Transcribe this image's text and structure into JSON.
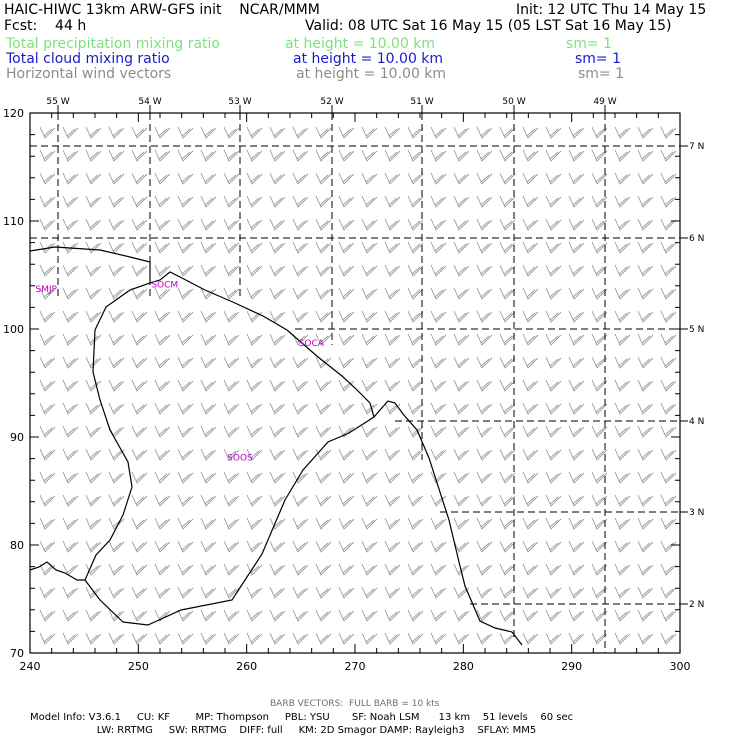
{
  "header": {
    "left_line1": "HAIC-HIWC 13km ARW-GFS init    NCAR/MMM",
    "right_line1": "Init: 12 UTC Thu 14 May 15",
    "left_line2": "Fcst:    44 h",
    "right_line2": "Valid: 08 UTC Sat 16 May 15 (05 LST Sat 16 May 15)",
    "fields": [
      {
        "name": "Total precipitation mixing ratio",
        "level": "at height = 10.00 km",
        "sm": "sm= 1",
        "color": "#7fe07f"
      },
      {
        "name": "Total cloud mixing ratio",
        "level": "at height = 10.00 km",
        "sm": "sm= 1",
        "color": "#1a1acd"
      },
      {
        "name": "Horizontal wind vectors",
        "level": "at height = 10.00 km",
        "sm": "sm= 1",
        "color": "#8c8c8c"
      }
    ]
  },
  "map": {
    "x_ticks": [
      "240",
      "250",
      "260",
      "270",
      "280",
      "290",
      "300"
    ],
    "y_ticks": [
      "70",
      "80",
      "90",
      "100",
      "110",
      "120"
    ],
    "lon_labels": [
      "55 W",
      "54 W",
      "53 W",
      "52 W",
      "51 W",
      "50 W",
      "49 W"
    ],
    "lat_labels": [
      "7 N",
      "6 N",
      "5 N",
      "4 N",
      "3 N",
      "2 N"
    ],
    "stations": [
      {
        "id": "SMJP",
        "x": 240.5,
        "y": 103.8
      },
      {
        "id": "SOCM",
        "x": 251.2,
        "y": 104.2
      },
      {
        "id": "SOCA",
        "x": 264.8,
        "y": 98.8
      },
      {
        "id": "SOOS",
        "x": 258.2,
        "y": 88.2
      }
    ],
    "station_color": "#c000c0"
  },
  "footer": {
    "barb_note": "BARB VECTORS:  FULL BARB = 10 kts",
    "line1": "Model Info: V3.6.1     CU: KF        MP: Thompson     PBL: YSU       SF: Noah LSM      13 km    51 levels    60 sec",
    "line2": "                     LW: RRTMG     SW: RRTMG    DIFF: full     KM: 2D Smagor DAMP: Rayleigh3    SFLAY: MM5"
  }
}
